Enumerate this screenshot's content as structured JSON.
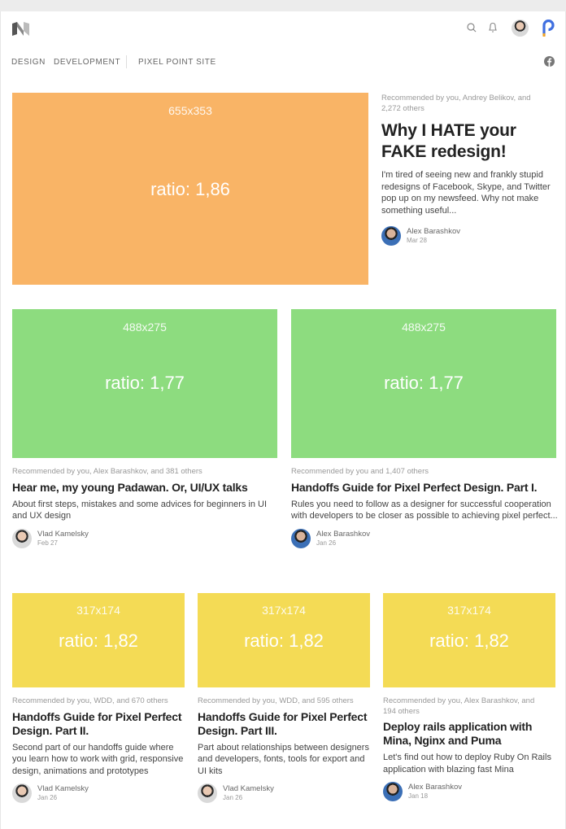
{
  "header": {
    "logo": "medium-logo",
    "icons": [
      "search-icon",
      "bell-icon",
      "avatar",
      "pixelpoint-logo"
    ]
  },
  "nav": {
    "items": [
      "DESIGN",
      "DEVELOPMENT",
      "PIXEL POINT SITE"
    ],
    "social": "facebook-icon"
  },
  "colors": {
    "orange": "#f9b466",
    "green": "#8ddc7f",
    "yellow": "#f4db55"
  },
  "posts": [
    {
      "dim": "655x353",
      "ratio": "ratio: 1,86",
      "rec": "Recommended by you, Andrey Belikov, and 2,272 others",
      "title": "Why I HATE your FAKE redesign!",
      "excerpt": "I'm tired of seeing new and frankly stupid redesigns of Facebook, Skype, and Twitter pop up on my newsfeed. Why not make something useful...",
      "author": "Alex Barashkov",
      "date": "Mar 28"
    },
    {
      "dim": "488x275",
      "ratio": "ratio: 1,77",
      "rec": "Recommended by you, Alex Barashkov, and 381 others",
      "title": "Hear me, my young Padawan. Or, UI/UX talks",
      "excerpt": "About first steps, mistakes and some advices for beginners in UI and UX design",
      "author": "Vlad Kamelsky",
      "date": "Feb 27"
    },
    {
      "dim": "488x275",
      "ratio": "ratio: 1,77",
      "rec": "Recommended by you and 1,407 others",
      "title": "Handoffs Guide for Pixel Perfect Design. Part I.",
      "excerpt": "Rules you need to follow as a designer for successful cooperation with developers to be closer as possible to achieving pixel perfect...",
      "author": "Alex Barashkov",
      "date": "Jan 26"
    },
    {
      "dim": "317x174",
      "ratio": "ratio: 1,82",
      "rec": "Recommended by you, WDD, and 670 others",
      "title": "Handoffs Guide for Pixel Perfect Design. Part II.",
      "excerpt": "Second part of our handoffs guide where you learn how to work with grid, responsive design, animations and prototypes",
      "author": "Vlad Kamelsky",
      "date": "Jan 26"
    },
    {
      "dim": "317x174",
      "ratio": "ratio: 1,82",
      "rec": "Recommended by you, WDD, and 595 others",
      "title": "Handoffs Guide for Pixel Perfect Design. Part III.",
      "excerpt": "Part about relationships between designers and developers, fonts, tools for export and UI kits",
      "author": "Vlad Kamelsky",
      "date": "Jan 26"
    },
    {
      "dim": "317x174",
      "ratio": "ratio: 1,82",
      "rec": "Recommended by you, Alex Barashkov, and 194 others",
      "title": "Deploy rails application with Mina, Nginx and Puma",
      "excerpt": "Let's find out how to deploy Ruby On Rails application with blazing fast Mina",
      "author": "Alex Barashkov",
      "date": "Jan 18"
    }
  ]
}
